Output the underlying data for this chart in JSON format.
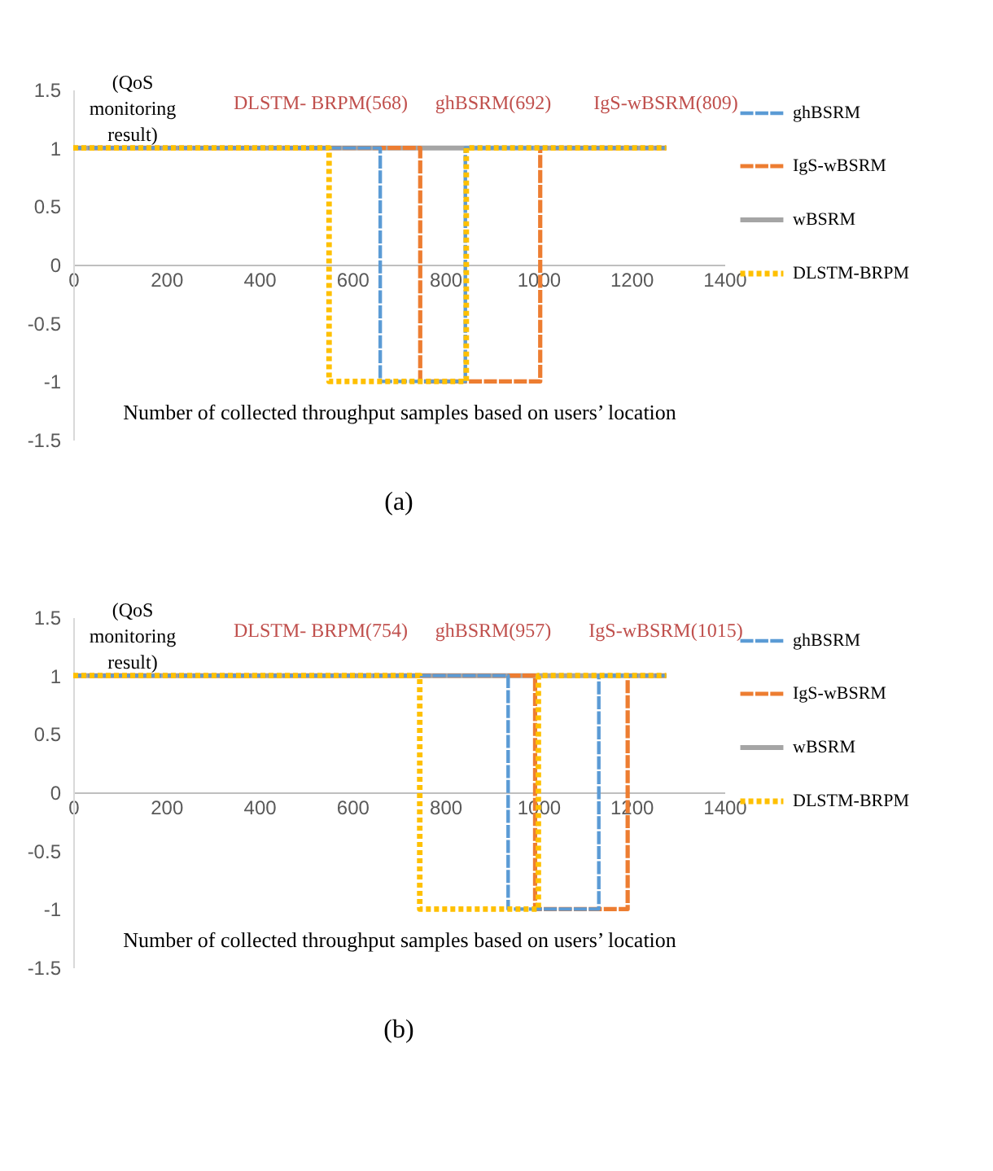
{
  "chart_data": [
    {
      "type": "line",
      "title": "(a)",
      "xlabel": "Number of collected throughput samples based on users’ location",
      "ylabel": "(QoS monitoring result)",
      "annotations": [
        "DLSTM- BRPM(568)",
        "ghBSRM(692)",
        "IgS-wBSRM(809)"
      ],
      "series": [
        {
          "name": "ghBSRM",
          "color": "#5b9bd5",
          "line_style": "dashed",
          "x": [
            0,
            660,
            660,
            843,
            843,
            1275
          ],
          "values": [
            1,
            1,
            -1,
            -1,
            1,
            1
          ]
        },
        {
          "name": "IgS-wBSRM",
          "color": "#ed7d31",
          "line_style": "dashed",
          "x": [
            0,
            746,
            746,
            1004,
            1004,
            1275
          ],
          "values": [
            1,
            1,
            -1,
            -1,
            1,
            1
          ]
        },
        {
          "name": "wBSRM",
          "color": "#a5a5a5",
          "line_style": "solid",
          "x": [
            0,
            1275
          ],
          "values": [
            1,
            1
          ]
        },
        {
          "name": "DLSTM-BRPM",
          "color": "#ffc000",
          "line_style": "dotted",
          "x": [
            0,
            550,
            550,
            845,
            845,
            1275
          ],
          "values": [
            1,
            1,
            -1,
            -1,
            1,
            1
          ]
        }
      ],
      "xlim": [
        0,
        1400
      ],
      "xticks": [
        0,
        200,
        400,
        600,
        800,
        1000,
        1200,
        1400
      ],
      "ylim": [
        -1.5,
        1.5
      ],
      "yticks": [
        -1.5,
        -1,
        -0.5,
        0,
        0.5,
        1,
        1.5
      ],
      "grid": false,
      "legend": "right"
    },
    {
      "type": "line",
      "title": "(b)",
      "xlabel": "Number of collected throughput samples based on users’ location",
      "ylabel": "(QoS monitoring result)",
      "annotations": [
        "DLSTM- BRPM(754)",
        "ghBSRM(957)",
        "IgS-wBSRM(1015)"
      ],
      "series": [
        {
          "name": "ghBSRM",
          "color": "#5b9bd5",
          "line_style": "dashed",
          "x": [
            0,
            935,
            935,
            1130,
            1130,
            1275
          ],
          "values": [
            1,
            1,
            -1,
            -1,
            1,
            1
          ]
        },
        {
          "name": "IgS-wBSRM",
          "color": "#ed7d31",
          "line_style": "dashed",
          "x": [
            0,
            993,
            993,
            1192,
            1192,
            1275
          ],
          "values": [
            1,
            1,
            -1,
            -1,
            1,
            1
          ]
        },
        {
          "name": "wBSRM",
          "color": "#a5a5a5",
          "line_style": "solid",
          "x": [
            0,
            1275
          ],
          "values": [
            1,
            1
          ]
        },
        {
          "name": "DLSTM-BRPM",
          "color": "#ffc000",
          "line_style": "dotted",
          "x": [
            0,
            745,
            745,
            1000,
            1000,
            1275
          ],
          "values": [
            1,
            1,
            -1,
            -1,
            1,
            1
          ]
        }
      ],
      "xlim": [
        0,
        1400
      ],
      "xticks": [
        0,
        200,
        400,
        600,
        800,
        1000,
        1200,
        1400
      ],
      "ylim": [
        -1.5,
        1.5
      ],
      "yticks": [
        -1.5,
        -1,
        -0.5,
        0,
        0.5,
        1,
        1.5
      ],
      "grid": false,
      "legend": "right"
    }
  ]
}
